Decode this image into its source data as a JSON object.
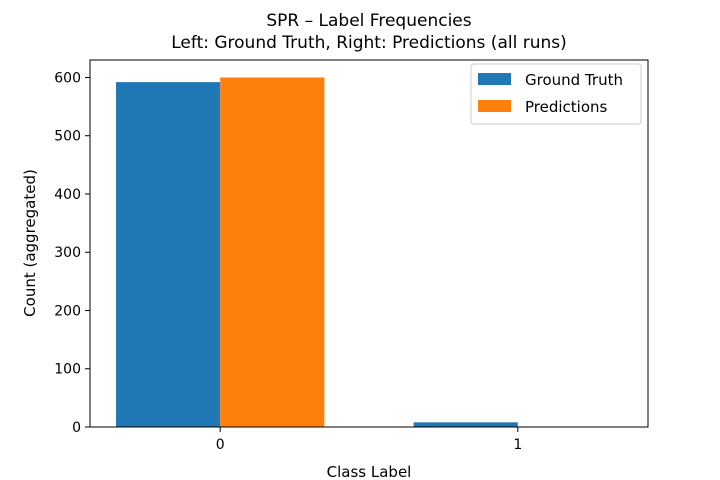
{
  "chart_data": {
    "type": "bar",
    "title": "SPR – Label Frequencies",
    "subtitle": "Left: Ground Truth, Right: Predictions (all runs)",
    "xlabel": "Class Label",
    "ylabel": "Count (aggregated)",
    "categories": [
      "0",
      "1"
    ],
    "series": [
      {
        "name": "Ground Truth",
        "color": "#1f77b4",
        "values": [
          592,
          8
        ]
      },
      {
        "name": "Predictions",
        "color": "#ff7f0e",
        "values": [
          600,
          0
        ]
      }
    ],
    "ylim": [
      0,
      630
    ],
    "yticks": [
      0,
      100,
      200,
      300,
      400,
      500,
      600
    ],
    "ytick_labels": [
      "0",
      "100",
      "200",
      "300",
      "400",
      "500",
      "600"
    ],
    "grid": false,
    "legend_position": "top-right"
  }
}
